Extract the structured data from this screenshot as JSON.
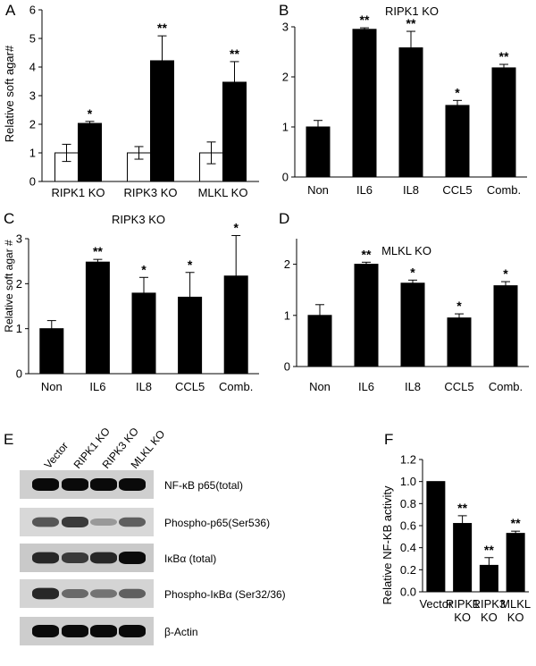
{
  "panel_letters": [
    "A",
    "B",
    "C",
    "D",
    "E",
    "F"
  ],
  "chart_data": [
    {
      "panel": "A",
      "type": "bar",
      "title": "",
      "ylabel": "Relative soft agar#",
      "ylim": [
        0,
        6
      ],
      "yticks": [
        0,
        1,
        2,
        3,
        4,
        5,
        6
      ],
      "categories": [
        "RIPK1 KO",
        "RIPK3 KO",
        "MLKL KO"
      ],
      "series": [
        {
          "fill": "#ffffff",
          "values": [
            1.0,
            1.0,
            1.0
          ],
          "errors": [
            0.3,
            0.22,
            0.38
          ],
          "sig": [
            "",
            "",
            ""
          ]
        },
        {
          "fill": "#000000",
          "values": [
            2.03,
            4.22,
            3.47
          ],
          "errors": [
            0.07,
            0.87,
            0.72
          ],
          "sig": [
            "*",
            "**",
            "**"
          ]
        }
      ]
    },
    {
      "panel": "B",
      "type": "bar",
      "title": "RIPK1 KO",
      "ylabel": "",
      "ylim": [
        0,
        3
      ],
      "yticks": [
        0,
        1,
        2,
        3
      ],
      "categories": [
        "Non",
        "IL6",
        "IL8",
        "CCL5",
        "Comb."
      ],
      "series": [
        {
          "fill": "#000000",
          "values": [
            1.0,
            2.95,
            2.58,
            1.43,
            2.18
          ],
          "errors": [
            0.13,
            0.03,
            0.33,
            0.1,
            0.07
          ],
          "sig": [
            "",
            "**",
            "**",
            "*",
            "**"
          ]
        }
      ]
    },
    {
      "panel": "C",
      "type": "bar",
      "title": "RIPK3 KO",
      "ylabel": "Relative soft agar #",
      "ylim": [
        0,
        3
      ],
      "yticks": [
        0,
        1,
        2,
        3
      ],
      "categories": [
        "Non",
        "IL6",
        "IL8",
        "CCL5",
        "Comb."
      ],
      "series": [
        {
          "fill": "#000000",
          "values": [
            1.0,
            2.48,
            1.79,
            1.7,
            2.17
          ],
          "errors": [
            0.18,
            0.06,
            0.35,
            0.55,
            0.9
          ],
          "sig": [
            "",
            "**",
            "*",
            "*",
            "*"
          ]
        }
      ]
    },
    {
      "panel": "D",
      "type": "bar",
      "title": "MLKL KO",
      "ylabel": "",
      "ylim": [
        0,
        2.5
      ],
      "yticks": [
        0,
        1,
        2
      ],
      "categories": [
        "Non",
        "IL6",
        "IL8",
        "CCL5",
        "Comb."
      ],
      "series": [
        {
          "fill": "#000000",
          "values": [
            1.0,
            2.0,
            1.63,
            0.95,
            1.58
          ],
          "errors": [
            0.21,
            0.04,
            0.06,
            0.08,
            0.08
          ],
          "sig": [
            "",
            "**",
            "*",
            "*",
            "*"
          ]
        }
      ]
    },
    {
      "panel": "F",
      "type": "bar",
      "title": "",
      "ylabel": "Relative NF-KB activity",
      "ylim": [
        0,
        1.2
      ],
      "yticks": [
        "0.0",
        "0.2",
        "0.4",
        "0.6",
        "0.8",
        "1.0",
        "1.2"
      ],
      "categories": [
        [
          "Vector"
        ],
        [
          "RIPK1",
          "KO"
        ],
        [
          "RIPK3",
          "KO"
        ],
        [
          "MLKL",
          "KO"
        ]
      ],
      "series": [
        {
          "fill": "#000000",
          "values": [
            1.0,
            0.62,
            0.24,
            0.53
          ],
          "errors": [
            0.0,
            0.07,
            0.07,
            0.02
          ],
          "sig": [
            "",
            "**",
            "**",
            "**"
          ]
        }
      ]
    }
  ],
  "blot": {
    "lanes": [
      "Vector",
      "RIPK1 KO",
      "RIPK3 KO",
      "MLKL KO"
    ],
    "rows": [
      {
        "label": "NF-κB p65(total)",
        "bg": "#cfcfcf",
        "intensity": [
          1.0,
          1.0,
          1.0,
          1.0
        ]
      },
      {
        "label": "Phospho-p65(Ser536)",
        "bg": "#d8d8d8",
        "intensity": [
          0.6,
          0.75,
          0.25,
          0.55
        ]
      },
      {
        "label": "IκBα (total)",
        "bg": "#c9c9c9",
        "intensity": [
          0.85,
          0.75,
          0.85,
          1.0
        ]
      },
      {
        "label": "Phospho-IκBα (Ser32/36)",
        "bg": "#d4d4d4",
        "intensity": [
          0.85,
          0.5,
          0.45,
          0.55
        ]
      },
      {
        "label": "β-Actin",
        "bg": "#cdcdcd",
        "intensity": [
          1.0,
          1.0,
          1.0,
          1.0
        ]
      }
    ]
  }
}
